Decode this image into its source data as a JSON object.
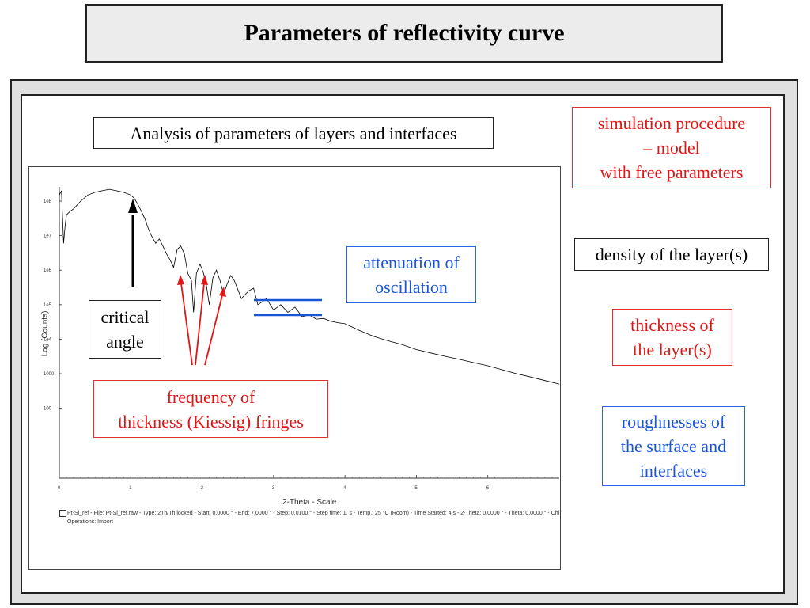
{
  "title": "Parameters of reflectivity curve",
  "analysis_label": "Analysis of parameters of layers and interfaces",
  "critical_angle": [
    "critical",
    "angle"
  ],
  "frequency": [
    "frequency of",
    "thickness (Kiessig) fringes"
  ],
  "attenuation": [
    "attenuation of",
    "oscillation"
  ],
  "simulation": [
    "simulation procedure",
    "– model",
    "with free parameters"
  ],
  "density": "density of the layer(s)",
  "thickness": [
    "thickness of",
    "the layer(s)"
  ],
  "roughness": [
    "roughnesses of",
    "the surface and",
    "interfaces"
  ],
  "colors": {
    "red": "#e01515",
    "blue": "#1a55d8",
    "black": "#000000"
  },
  "chart_data": {
    "type": "line",
    "xlabel": "2-Theta - Scale",
    "ylabel": "Log (Counts)",
    "y_scale": "log",
    "x_ticks": [
      "0",
      "1",
      "2",
      "3",
      "4",
      "5",
      "6"
    ],
    "y_ticks": [
      "1e8",
      "1e7",
      "1e6",
      "1e5",
      "1e4",
      "1000",
      "100"
    ],
    "xlim": [
      0,
      7
    ],
    "ylim": [
      10,
      300000000
    ],
    "legend_line1": "Pt-Si_ref - File: Pt-Si_ref.raw - Type: 2Th/Th locked - Start: 0.0000 ° - End: 7.0000 ° - Step: 0.0100 ° - Step time: 1. s - Temp.: 25 °C (Room) - Time Started: 4 s - 2-Theta: 0.0000 ° - Theta: 0.0000 ° - Chi",
    "legend_line2": "Operations: Import",
    "series": [
      {
        "x": [
          0.0,
          0.03,
          0.06,
          0.08,
          0.1,
          0.15,
          0.2,
          0.3,
          0.4,
          0.5,
          0.6,
          0.7,
          0.8,
          0.9,
          1.0,
          1.05,
          1.1,
          1.15,
          1.2,
          1.25,
          1.3,
          1.35,
          1.4,
          1.45,
          1.5,
          1.55,
          1.6,
          1.65,
          1.7,
          1.75,
          1.8,
          1.85,
          1.88,
          1.92,
          1.97,
          2.02,
          2.06,
          2.1,
          2.15,
          2.2,
          2.25,
          2.3,
          2.35,
          2.4,
          2.45,
          2.55,
          2.65,
          2.72,
          2.78,
          2.84,
          2.9,
          3.0,
          3.1,
          3.2,
          3.3,
          3.4,
          3.5,
          3.6,
          3.7,
          3.8,
          3.9,
          4.0,
          4.2,
          4.4,
          4.6,
          4.8,
          5.0,
          5.2,
          5.4,
          5.6,
          5.8,
          6.0,
          6.2,
          6.4,
          6.6,
          6.8,
          7.0
        ],
        "y": [
          150000000,
          200000000,
          6000000,
          18000000,
          40000000,
          50000000,
          60000000,
          100000000,
          150000000,
          180000000,
          200000000,
          220000000,
          200000000,
          180000000,
          150000000,
          120000000,
          80000000,
          50000000,
          30000000,
          15000000,
          9000000,
          6000000,
          8000000,
          5000000,
          3000000,
          2000000,
          1200000,
          4000000,
          5000000,
          3000000,
          800000,
          500000,
          60000,
          800000,
          1500000,
          800000,
          350000,
          100000,
          600000,
          1000000,
          500000,
          200000,
          400000,
          700000,
          500000,
          150000,
          250000,
          300000,
          100000,
          120000,
          150000,
          70000,
          100000,
          60000,
          85000,
          45000,
          50000,
          38000,
          40000,
          33000,
          30000,
          28000,
          18000,
          12000,
          9000,
          7000,
          5000,
          4000,
          3200,
          2600,
          2100,
          1700,
          1300,
          1000,
          800,
          630,
          500
        ]
      }
    ]
  }
}
